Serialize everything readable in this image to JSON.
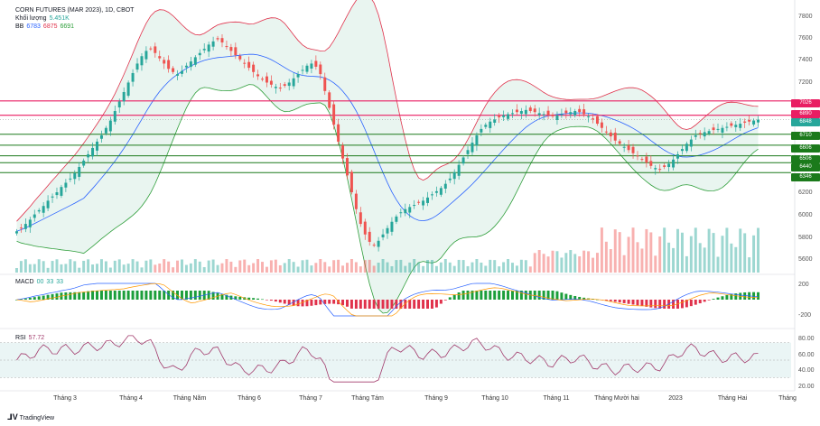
{
  "header": {
    "title": "CORN FUTURES (MAR 2023), 1D, CBOT",
    "volume_label": "Khối lượng",
    "volume_value": "5.451K",
    "bb_label": "BB",
    "bb_v1": "6783",
    "bb_v2": "6875",
    "bb_v3": "6691",
    "macd_label": "MACD",
    "macd_v1": "00",
    "macd_v2": "33",
    "macd_v3": "33",
    "rsi_label": "RSI",
    "rsi_value": "57.72"
  },
  "price_axis": [
    "7800",
    "7600",
    "7400",
    "7200",
    "6200",
    "6000",
    "5800",
    "5600"
  ],
  "price_tags": [
    {
      "text": "7026",
      "color": "#e91e63"
    },
    {
      "text": "6890",
      "color": "#e91e63"
    },
    {
      "text": "6848",
      "color": "#26a69a"
    },
    {
      "text": "6710",
      "color": "#1b7a1b"
    },
    {
      "text": "6606",
      "color": "#1b7a1b"
    },
    {
      "text": "6506",
      "color": "#1b7a1b"
    },
    {
      "text": "6440",
      "color": "#1b7a1b"
    },
    {
      "text": "6346",
      "color": "#1b7a1b"
    }
  ],
  "macd_axis": [
    "200",
    "-200"
  ],
  "rsi_axis": [
    "80.00",
    "60.00",
    "40.00",
    "20.00"
  ],
  "months": [
    "Tháng 3",
    "Tháng 4",
    "Tháng Năm",
    "Tháng 6",
    "Tháng 7",
    "Tháng Tám",
    "Tháng 9",
    "Tháng 10",
    "Tháng 11",
    "Tháng Mười hai",
    "2023",
    "Tháng Hai",
    "Tháng"
  ],
  "brand": "TradingView",
  "colors": {
    "up": "#26a69a",
    "down": "#ef5350",
    "bb_upper": "#e0314b",
    "bb_lower": "#2e9e3a",
    "bb_basis": "#2962ff",
    "rsi": "#a23b6c",
    "resistance": "#e91e63",
    "support": "#1b7a1b"
  },
  "chart_data": {
    "type": "candlestick",
    "symbol": "CORN FUTURES (MAR 2023)",
    "interval": "1D",
    "y_unit": "price",
    "ylim": [
      5450,
      7880
    ],
    "horizontal_levels": [
      7026,
      6890,
      6710,
      6606,
      6506,
      6440,
      6346
    ],
    "months": [
      "Tháng 3",
      "Tháng 4",
      "Tháng Năm",
      "Tháng 6",
      "Tháng 7",
      "Tháng Tám",
      "Tháng 9",
      "Tháng 10",
      "Tháng 11",
      "Tháng Mười hai",
      "2023",
      "Tháng Hai"
    ],
    "close_series": [
      5790,
      5820,
      5860,
      5900,
      5950,
      5990,
      6030,
      6080,
      6120,
      6160,
      6210,
      6250,
      6290,
      6340,
      6400,
      6460,
      6520,
      6580,
      6640,
      6700,
      6770,
      6840,
      6930,
      7020,
      7110,
      7200,
      7290,
      7380,
      7450,
      7500,
      7520,
      7480,
      7430,
      7380,
      7330,
      7300,
      7280,
      7310,
      7360,
      7400,
      7440,
      7480,
      7520,
      7560,
      7590,
      7610,
      7580,
      7540,
      7500,
      7460,
      7420,
      7380,
      7340,
      7300,
      7260,
      7230,
      7200,
      7180,
      7160,
      7150,
      7170,
      7200,
      7240,
      7280,
      7320,
      7360,
      7380,
      7350,
      7280,
      7120,
      6960,
      6800,
      6640,
      6480,
      6320,
      6160,
      6000,
      5860,
      5760,
      5690,
      5660,
      5700,
      5760,
      5820,
      5880,
      5930,
      5970,
      6000,
      6020,
      6040,
      6060,
      6080,
      6110,
      6140,
      6170,
      6200,
      6240,
      6290,
      6350,
      6420,
      6490,
      6560,
      6630,
      6700,
      6760,
      6800,
      6830,
      6850,
      6870,
      6890,
      6900,
      6910,
      6920,
      6930,
      6940,
      6930,
      6920,
      6910,
      6900,
      6890,
      6880,
      6890,
      6900,
      6910,
      6920,
      6930,
      6920,
      6900,
      6880,
      6850,
      6810,
      6770,
      6730,
      6690,
      6650,
      6620,
      6590,
      6560,
      6530,
      6500,
      6470,
      6440,
      6410,
      6390,
      6380,
      6400,
      6430,
      6470,
      6520,
      6570,
      6620,
      6660,
      6700,
      6720,
      6730,
      6740,
      6750,
      6760,
      6770,
      6780,
      6790,
      6800,
      6810,
      6820,
      6830,
      6840,
      6848
    ],
    "volume": {
      "last": "5.451K"
    },
    "macd": {
      "values": [
        "00",
        "33",
        "33"
      ]
    },
    "rsi": {
      "value": 57.72,
      "levels": [
        70,
        30
      ],
      "axis": [
        80,
        60,
        40,
        20
      ]
    },
    "bollinger": {
      "values": [
        6783,
        6875,
        6691
      ]
    }
  }
}
